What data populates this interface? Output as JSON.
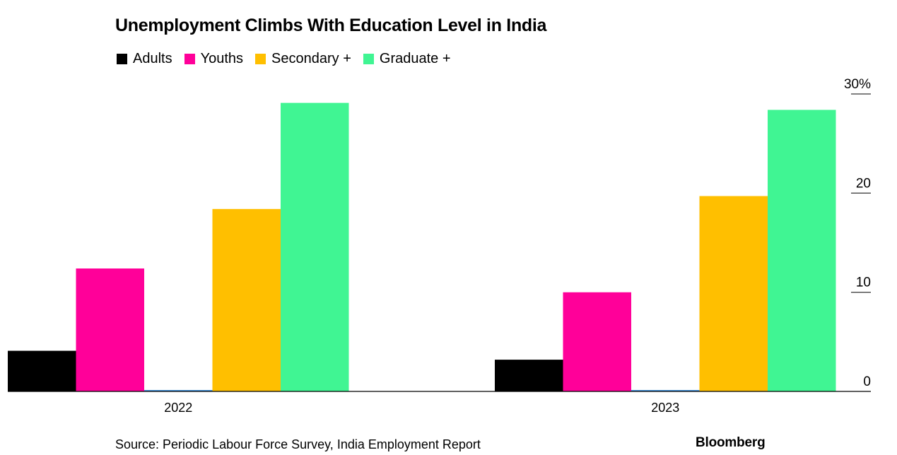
{
  "chart_data": {
    "type": "bar",
    "title": "Unemployment Climbs With Education Level in India",
    "categories": [
      "2022",
      "2023"
    ],
    "series": [
      {
        "name": "Adults",
        "color": "#000000",
        "values": [
          4.1,
          3.2
        ]
      },
      {
        "name": "Youths",
        "color": "#ff0099",
        "values": [
          12.4,
          10.0
        ]
      },
      {
        "name": "Secondary +",
        "color": "#ffbf00",
        "values": [
          18.4,
          19.7
        ]
      },
      {
        "name": "Graduate +",
        "color": "#40f593",
        "values": [
          29.1,
          28.4
        ]
      }
    ],
    "ylim": [
      0,
      30
    ],
    "yticks": [
      {
        "value": 0,
        "label": "0"
      },
      {
        "value": 10,
        "label": "10"
      },
      {
        "value": 20,
        "label": "20"
      },
      {
        "value": 30,
        "label": "30%"
      }
    ],
    "legend_position": "top-left",
    "grid": false,
    "xlabel": "",
    "ylabel": ""
  },
  "source": "Source: Periodic Labour Force Survey, India Employment Report",
  "brand": "Bloomberg"
}
